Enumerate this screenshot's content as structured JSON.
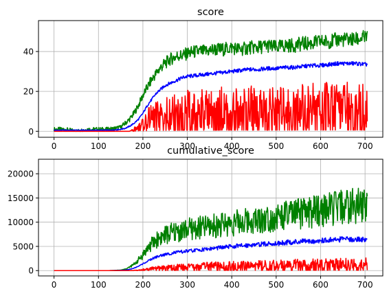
{
  "colors": {
    "green": "#008000",
    "blue": "#0000ff",
    "red": "#ff0000",
    "grid": "#b0b0b0"
  },
  "chart_data": [
    {
      "type": "line",
      "title": "score",
      "xlabel": "",
      "ylabel": "",
      "xlim": [
        -35,
        740
      ],
      "ylim": [
        -3,
        55.5
      ],
      "xticks": [
        0,
        100,
        200,
        300,
        400,
        500,
        600,
        700
      ],
      "yticks": [
        0,
        20,
        40
      ],
      "grid": true,
      "legend": "none",
      "series": [
        {
          "color": "green",
          "x": [
            0,
            25,
            50,
            75,
            100,
            125,
            150,
            160,
            170,
            180,
            190,
            200,
            210,
            220,
            230,
            240,
            250,
            260,
            270,
            280,
            290,
            300,
            320,
            340,
            360,
            380,
            400,
            420,
            440,
            460,
            480,
            500,
            520,
            540,
            560,
            580,
            600,
            620,
            640,
            660,
            680,
            700,
            705
          ],
          "y": [
            1,
            1,
            0,
            1,
            1,
            1,
            2,
            4,
            6,
            9,
            13,
            18,
            22,
            26,
            29,
            32,
            34,
            36,
            37,
            38,
            38,
            39,
            40,
            40,
            41,
            41,
            42,
            41,
            42,
            42,
            43,
            42,
            43,
            43,
            44,
            44,
            45,
            45,
            46,
            46,
            46,
            47,
            47
          ]
        },
        {
          "color": "blue",
          "x": [
            0,
            25,
            50,
            75,
            100,
            125,
            150,
            160,
            170,
            180,
            190,
            200,
            210,
            220,
            230,
            240,
            250,
            260,
            270,
            280,
            290,
            300,
            320,
            340,
            360,
            380,
            400,
            420,
            440,
            460,
            480,
            500,
            520,
            540,
            560,
            580,
            600,
            620,
            640,
            660,
            680,
            700,
            705
          ],
          "y": [
            0.5,
            0.5,
            0.5,
            0.5,
            0.5,
            0.5,
            1,
            1.5,
            2.5,
            4,
            6,
            9,
            13,
            16,
            19,
            21,
            23,
            24,
            25,
            26,
            27,
            27.5,
            28,
            28.5,
            29,
            29.5,
            30,
            30.5,
            31,
            31,
            31.5,
            31.5,
            32,
            32,
            32.5,
            33,
            33,
            33.5,
            34,
            34,
            34,
            33.5,
            33.5
          ]
        },
        {
          "color": "red",
          "x": [
            0,
            25,
            50,
            75,
            100,
            125,
            150,
            160,
            170,
            180,
            190,
            200,
            210,
            220,
            230,
            240,
            250,
            260,
            270,
            280,
            290,
            300,
            320,
            340,
            360,
            380,
            400,
            420,
            440,
            460,
            480,
            500,
            520,
            540,
            560,
            580,
            600,
            620,
            640,
            660,
            680,
            700,
            705
          ],
          "y": [
            0,
            0,
            0,
            0,
            0,
            0,
            0,
            0,
            0,
            1,
            2,
            4,
            6,
            7,
            8,
            9,
            9,
            10,
            10,
            10,
            11,
            11,
            11,
            11,
            11,
            12,
            12,
            12,
            12,
            12,
            12,
            12,
            12,
            12,
            13,
            13,
            13,
            13,
            13,
            13,
            13,
            13,
            13
          ]
        }
      ]
    },
    {
      "type": "line",
      "title": "cumulative_score",
      "xlabel": "",
      "ylabel": "",
      "xlim": [
        -35,
        740
      ],
      "ylim": [
        -1100,
        23000
      ],
      "xticks": [
        0,
        100,
        200,
        300,
        400,
        500,
        600,
        700
      ],
      "yticks": [
        0,
        5000,
        10000,
        15000,
        20000
      ],
      "grid": true,
      "legend": "none",
      "series": [
        {
          "color": "green",
          "x": [
            0,
            25,
            50,
            75,
            100,
            125,
            150,
            160,
            170,
            180,
            190,
            200,
            210,
            220,
            230,
            240,
            250,
            260,
            270,
            280,
            290,
            300,
            320,
            340,
            360,
            380,
            400,
            420,
            440,
            460,
            480,
            500,
            520,
            540,
            560,
            580,
            600,
            620,
            640,
            660,
            680,
            700,
            705
          ],
          "y": [
            0,
            0,
            0,
            0,
            0,
            0,
            100,
            300,
            700,
            1300,
            2200,
            3300,
            4500,
            5500,
            6300,
            6900,
            7300,
            7600,
            7900,
            8100,
            8300,
            8500,
            8700,
            9000,
            9200,
            9500,
            9800,
            10000,
            10300,
            10500,
            10800,
            11000,
            11300,
            11600,
            11800,
            12100,
            12400,
            12700,
            13000,
            13200,
            13400,
            13600,
            13700
          ]
        },
        {
          "color": "blue",
          "x": [
            0,
            25,
            50,
            75,
            100,
            125,
            150,
            160,
            170,
            180,
            190,
            200,
            210,
            220,
            230,
            240,
            250,
            260,
            270,
            280,
            290,
            300,
            320,
            340,
            360,
            380,
            400,
            420,
            440,
            460,
            480,
            500,
            520,
            540,
            560,
            580,
            600,
            620,
            640,
            660,
            680,
            700,
            705
          ],
          "y": [
            0,
            0,
            0,
            0,
            0,
            0,
            50,
            100,
            250,
            500,
            900,
            1400,
            1900,
            2400,
            2800,
            3100,
            3300,
            3500,
            3700,
            3800,
            3900,
            4000,
            4200,
            4400,
            4600,
            4800,
            5000,
            5100,
            5300,
            5400,
            5500,
            5600,
            5800,
            5900,
            6000,
            6100,
            6200,
            6300,
            6400,
            6500,
            6500,
            6400,
            6400
          ]
        },
        {
          "color": "red",
          "x": [
            0,
            25,
            50,
            75,
            100,
            125,
            150,
            160,
            170,
            180,
            190,
            200,
            210,
            220,
            230,
            240,
            250,
            260,
            270,
            280,
            290,
            300,
            320,
            340,
            360,
            380,
            400,
            420,
            440,
            460,
            480,
            500,
            520,
            540,
            560,
            580,
            600,
            620,
            640,
            660,
            680,
            700,
            705
          ],
          "y": [
            0,
            0,
            0,
            0,
            0,
            0,
            0,
            0,
            0,
            50,
            100,
            200,
            300,
            400,
            500,
            550,
            600,
            650,
            700,
            750,
            800,
            850,
            900,
            950,
            1000,
            1000,
            1050,
            1100,
            1100,
            1150,
            1200,
            1200,
            1250,
            1300,
            1300,
            1350,
            1400,
            1400,
            1450,
            1500,
            1500,
            1500,
            1500
          ]
        }
      ]
    }
  ]
}
